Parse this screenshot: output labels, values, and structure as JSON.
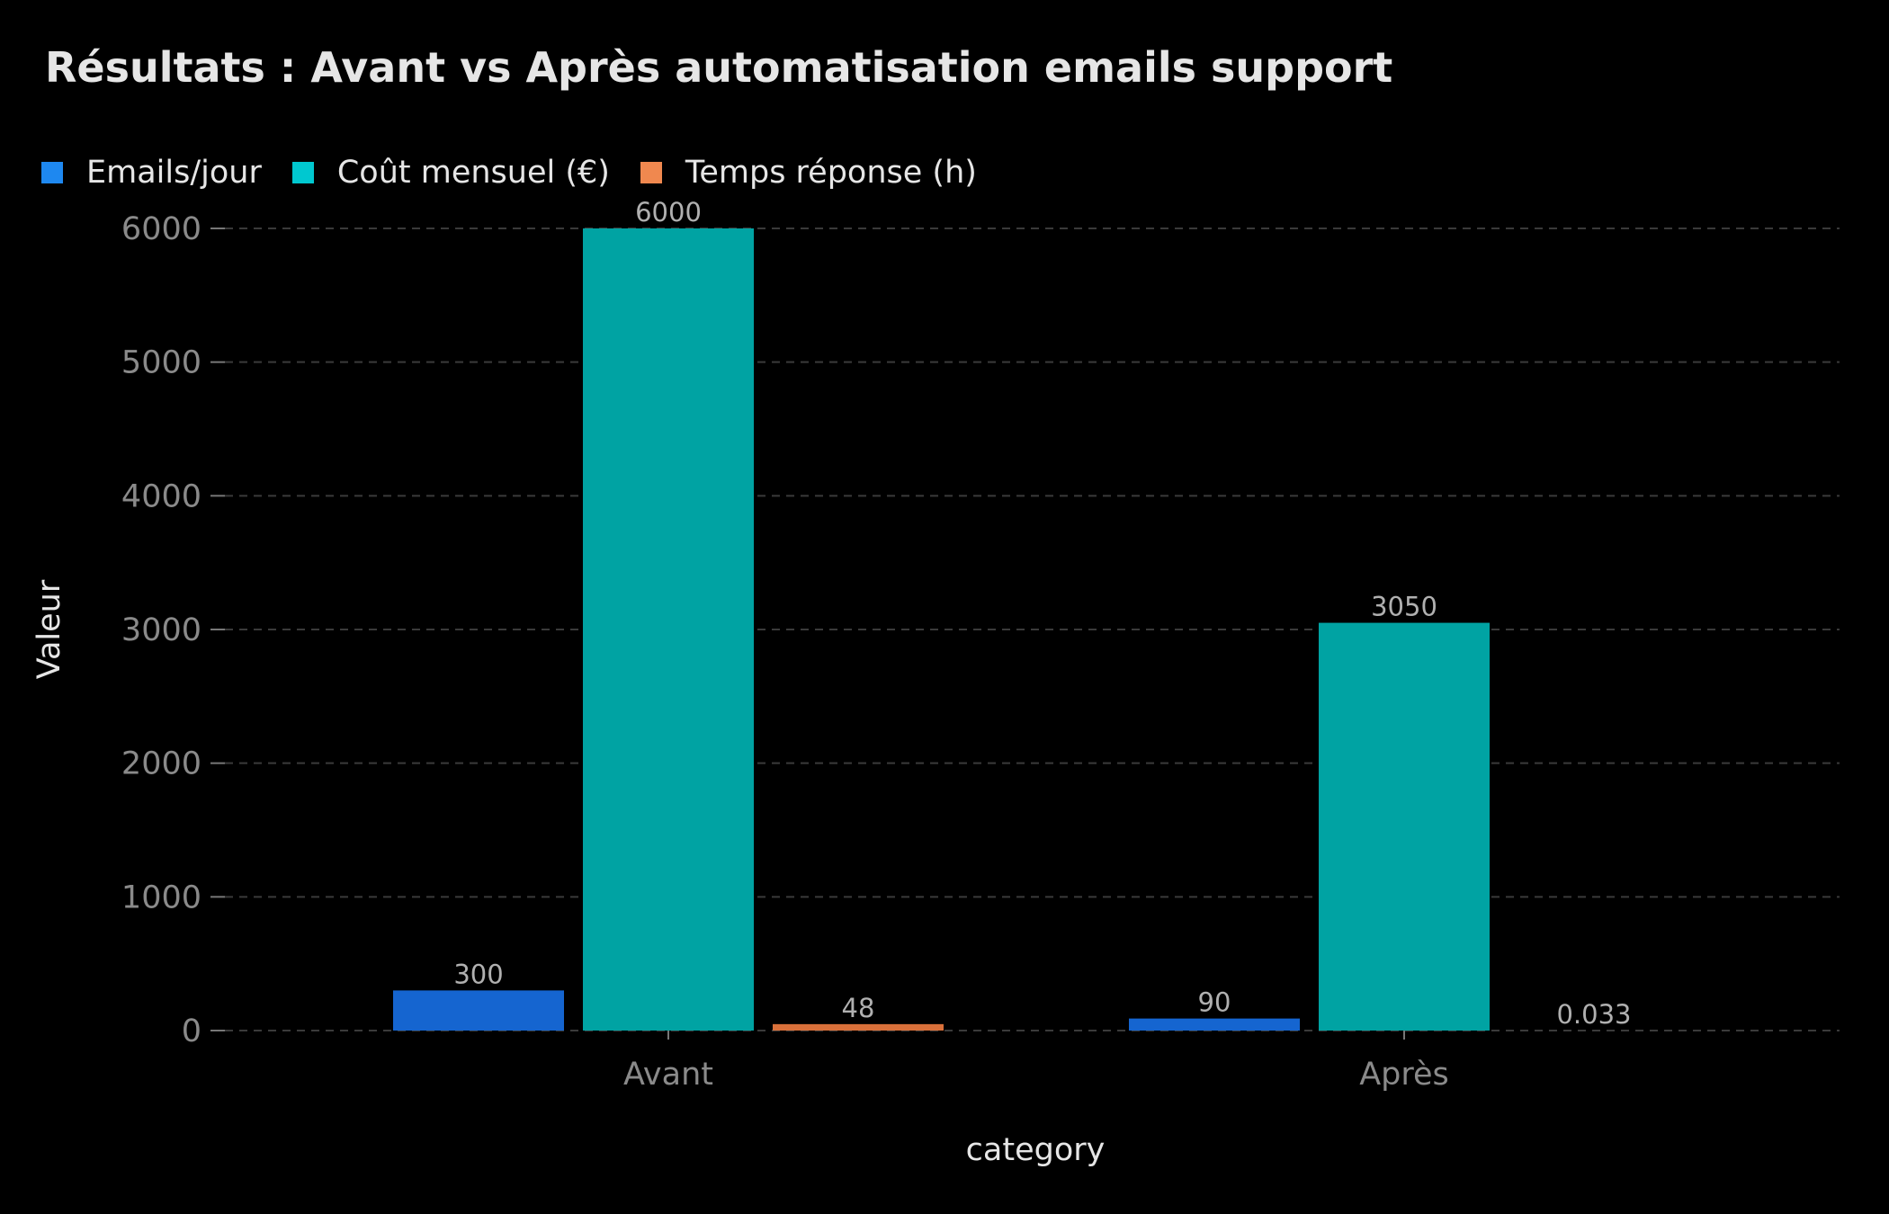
{
  "chart_data": {
    "type": "bar",
    "title": "Résultats : Avant vs Après automatisation emails support",
    "xlabel": "category",
    "ylabel": "Valeur",
    "categories": [
      "Avant",
      "Après"
    ],
    "series": [
      {
        "name": "Emails/jour",
        "values": [
          300,
          90
        ],
        "color": "#1565d0",
        "legend_color": "#1e88f0",
        "labels": [
          "300",
          "90"
        ]
      },
      {
        "name": "Coût mensuel (€)",
        "values": [
          6000,
          3050
        ],
        "color": "#00a3a3",
        "legend_color": "#00c8d0",
        "labels": [
          "6000",
          "3050"
        ]
      },
      {
        "name": "Temps réponse (h)",
        "values": [
          48,
          0.033
        ],
        "color": "#d9703a",
        "legend_color": "#f0884f",
        "labels": [
          "48",
          "0.033"
        ]
      }
    ],
    "yticks": [
      "0",
      "1000",
      "2000",
      "3000",
      "4000",
      "5000",
      "6000"
    ],
    "ylim": [
      0,
      6000
    ],
    "grid": "horizontal dashed",
    "legend_position": "top-left",
    "background": "#000000"
  }
}
